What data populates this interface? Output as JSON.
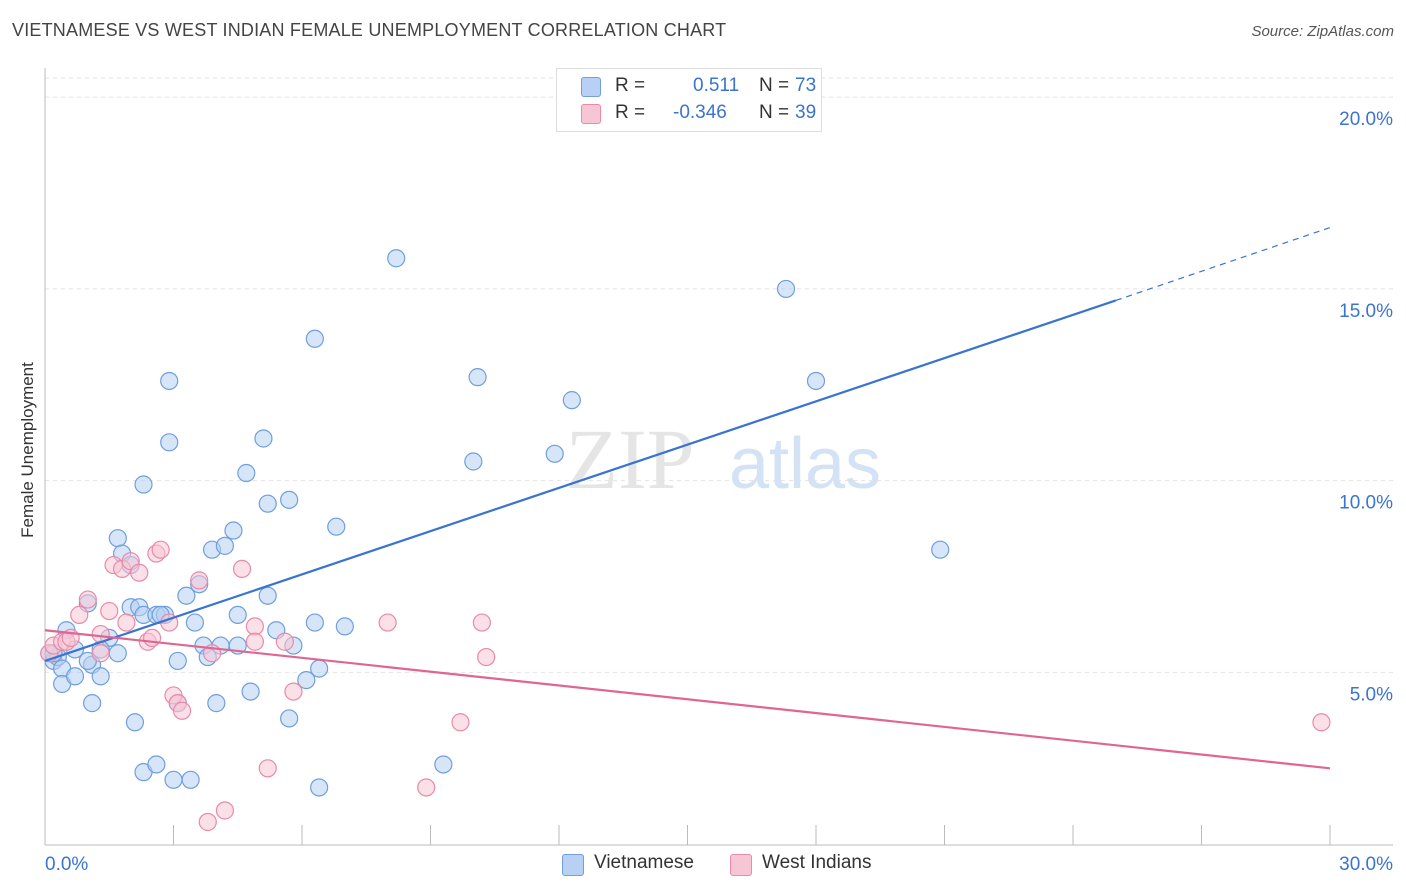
{
  "title": "VIETNAMESE VS WEST INDIAN FEMALE UNEMPLOYMENT CORRELATION CHART",
  "source": "Source: ZipAtlas.com",
  "watermark": {
    "zip": "ZIP",
    "atlas": "atlas"
  },
  "legend": {
    "vietnamese": {
      "r_label": "R =",
      "r_value": "0.511",
      "n_label": "N =",
      "n_value": "73"
    },
    "west_indians": {
      "r_label": "R =",
      "r_value": "-0.346",
      "n_label": "N =",
      "n_value": "39"
    }
  },
  "bottom_legend": {
    "vietnamese": "Vietnamese",
    "west_indians": "West Indians"
  },
  "colors": {
    "blue_fill": "#b7d0f3",
    "blue_stroke": "#6f9fdc",
    "blue_line": "#3a74d0",
    "pink_fill": "#f7c6d5",
    "pink_stroke": "#e98aa8",
    "pink_line": "#e06592",
    "tick_label": "#3a74d0",
    "grid": "#e2e2e2"
  },
  "chart_data": {
    "type": "scatter",
    "title": "VIETNAMESE VS WEST INDIAN FEMALE UNEMPLOYMENT CORRELATION CHART",
    "xlabel": "",
    "ylabel": "Female Unemployment",
    "xlim": [
      0,
      30
    ],
    "ylim": [
      0.5,
      20.5
    ],
    "x_tick_labels": [
      "0.0%",
      "30.0%"
    ],
    "y_ticks": [
      5,
      10,
      15,
      20
    ],
    "y_tick_labels": [
      "5.0%",
      "10.0%",
      "15.0%",
      "20.0%"
    ],
    "grid": true,
    "series": [
      {
        "name": "Vietnamese",
        "r": 0.511,
        "n": 73,
        "trend": {
          "x0": 0,
          "y0": 5.3,
          "x1": 25.0,
          "y1": 14.7,
          "dash_to_x": 30,
          "dash_to_y": 16.6
        },
        "points": [
          [
            0.1,
            5.5
          ],
          [
            0.2,
            5.3
          ],
          [
            0.3,
            5.4
          ],
          [
            0.4,
            5.1
          ],
          [
            0.5,
            6.1
          ],
          [
            0.4,
            4.7
          ],
          [
            0.7,
            5.6
          ],
          [
            0.7,
            4.9
          ],
          [
            1.1,
            5.2
          ],
          [
            1.0,
            5.3
          ],
          [
            1.0,
            6.8
          ],
          [
            1.1,
            4.2
          ],
          [
            1.3,
            4.9
          ],
          [
            1.5,
            5.9
          ],
          [
            1.7,
            5.5
          ],
          [
            1.7,
            8.5
          ],
          [
            1.8,
            8.1
          ],
          [
            2.0,
            7.8
          ],
          [
            2.0,
            6.7
          ],
          [
            2.1,
            3.7
          ],
          [
            2.2,
            6.7
          ],
          [
            2.3,
            6.5
          ],
          [
            2.3,
            2.4
          ],
          [
            2.3,
            9.9
          ],
          [
            2.6,
            2.6
          ],
          [
            2.6,
            6.5
          ],
          [
            2.8,
            6.5
          ],
          [
            2.9,
            12.6
          ],
          [
            2.9,
            11.0
          ],
          [
            3.0,
            2.2
          ],
          [
            3.1,
            5.3
          ],
          [
            3.1,
            4.2
          ],
          [
            3.3,
            7.0
          ],
          [
            3.4,
            2.2
          ],
          [
            3.5,
            6.3
          ],
          [
            3.6,
            7.3
          ],
          [
            3.7,
            5.7
          ],
          [
            3.8,
            5.4
          ],
          [
            3.9,
            8.2
          ],
          [
            4.0,
            4.2
          ],
          [
            4.1,
            5.7
          ],
          [
            4.2,
            8.3
          ],
          [
            4.4,
            8.7
          ],
          [
            4.5,
            6.5
          ],
          [
            4.5,
            5.7
          ],
          [
            4.7,
            10.2
          ],
          [
            4.8,
            4.5
          ],
          [
            5.1,
            11.1
          ],
          [
            5.2,
            9.4
          ],
          [
            5.2,
            7.0
          ],
          [
            5.4,
            6.1
          ],
          [
            5.7,
            9.5
          ],
          [
            5.7,
            3.8
          ],
          [
            5.8,
            5.7
          ],
          [
            6.1,
            4.8
          ],
          [
            6.3,
            6.3
          ],
          [
            6.3,
            13.7
          ],
          [
            6.4,
            5.1
          ],
          [
            6.4,
            2.0
          ],
          [
            6.8,
            8.8
          ],
          [
            7.0,
            6.2
          ],
          [
            8.2,
            15.8
          ],
          [
            9.3,
            2.6
          ],
          [
            10.0,
            10.5
          ],
          [
            10.1,
            12.7
          ],
          [
            11.9,
            10.7
          ],
          [
            12.3,
            12.1
          ],
          [
            17.3,
            15.0
          ],
          [
            18.0,
            12.6
          ],
          [
            20.9,
            8.2
          ],
          [
            1.3,
            5.6
          ],
          [
            2.7,
            6.5
          ],
          [
            0.2,
            5.5
          ]
        ]
      },
      {
        "name": "West Indians",
        "r": -0.346,
        "n": 39,
        "trend": {
          "x0": 0,
          "y0": 6.1,
          "x1": 30,
          "y1": 2.5
        },
        "points": [
          [
            0.1,
            5.5
          ],
          [
            0.2,
            5.7
          ],
          [
            0.4,
            5.8
          ],
          [
            0.5,
            5.8
          ],
          [
            0.6,
            5.9
          ],
          [
            0.8,
            6.5
          ],
          [
            1.0,
            6.9
          ],
          [
            1.3,
            5.5
          ],
          [
            1.3,
            6.0
          ],
          [
            1.5,
            6.6
          ],
          [
            1.6,
            7.8
          ],
          [
            1.8,
            7.7
          ],
          [
            1.9,
            6.3
          ],
          [
            2.0,
            7.9
          ],
          [
            2.2,
            7.6
          ],
          [
            2.4,
            5.8
          ],
          [
            2.5,
            5.9
          ],
          [
            2.6,
            8.1
          ],
          [
            2.7,
            8.2
          ],
          [
            2.9,
            6.3
          ],
          [
            3.0,
            4.4
          ],
          [
            3.1,
            4.2
          ],
          [
            3.2,
            4.0
          ],
          [
            3.6,
            7.4
          ],
          [
            3.8,
            1.1
          ],
          [
            3.9,
            5.5
          ],
          [
            4.2,
            1.4
          ],
          [
            4.6,
            7.7
          ],
          [
            4.9,
            6.2
          ],
          [
            4.9,
            5.8
          ],
          [
            5.2,
            2.5
          ],
          [
            5.6,
            5.8
          ],
          [
            5.8,
            4.5
          ],
          [
            8.0,
            6.3
          ],
          [
            8.9,
            2.0
          ],
          [
            9.7,
            3.7
          ],
          [
            10.2,
            6.3
          ],
          [
            10.3,
            5.4
          ],
          [
            29.8,
            3.7
          ]
        ]
      }
    ]
  }
}
